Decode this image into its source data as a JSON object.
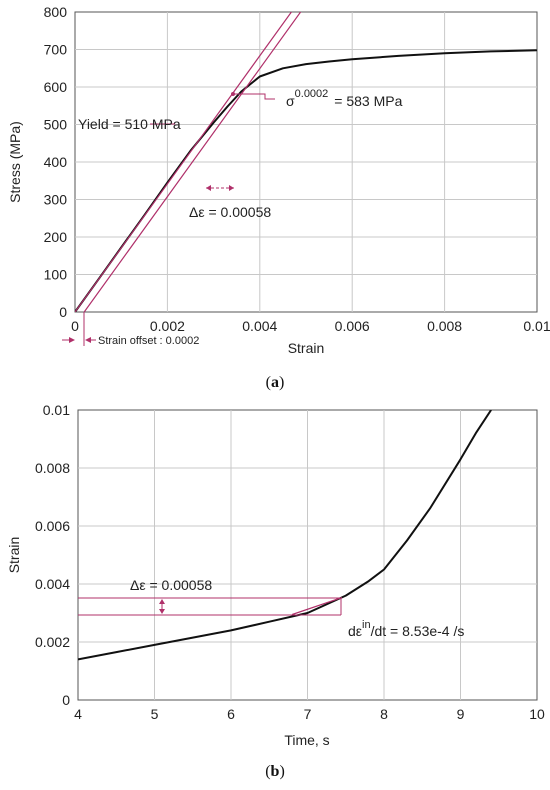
{
  "chart_data": [
    {
      "panel": "(a)",
      "type": "line",
      "xlabel": "Strain",
      "ylabel": "Stress (MPa)",
      "xlim": [
        0,
        0.01
      ],
      "ylim": [
        0,
        800
      ],
      "xticks": [
        0,
        0.002,
        0.004,
        0.006,
        0.008,
        0.01
      ],
      "xtick_labels": [
        "0",
        "0.002",
        "0.004",
        "0.006",
        "0.008",
        "0.01"
      ],
      "yticks": [
        0,
        100,
        200,
        300,
        400,
        500,
        600,
        700,
        800
      ],
      "ytick_labels": [
        "0",
        "100",
        "200",
        "300",
        "400",
        "500",
        "600",
        "700",
        "800"
      ],
      "grid": true,
      "series": [
        {
          "x": [
            0,
            0.0005,
            0.001,
            0.0015,
            0.002,
            0.0025,
            0.003,
            0.0033,
            0.0036,
            0.004,
            0.0045,
            0.005,
            0.0055,
            0.006,
            0.007,
            0.008,
            0.009,
            0.01
          ],
          "y": [
            0,
            86,
            172,
            258,
            345,
            430,
            505,
            548,
            588,
            628,
            650,
            661,
            668,
            674,
            683,
            690,
            695,
            698
          ],
          "color": "#111111"
        },
        {
          "x": [
            0,
            0.0048
          ],
          "y": [
            0,
            820
          ],
          "color": "#b0306a"
        },
        {
          "x": [
            0.0002,
            0.005
          ],
          "y": [
            0,
            820
          ],
          "color": "#b0306a"
        }
      ],
      "annotations": {
        "yield": "Yield = 510 MPa",
        "sigma_symbol": "σ",
        "sigma_sup": "0.0002",
        "sigma_value": "= 583 MPa",
        "delta_eps": "Δε = 0.00058",
        "offset": "Strain offset : 0.0002"
      }
    },
    {
      "panel": "(b)",
      "type": "line",
      "xlabel": "Time, s",
      "ylabel": "Strain",
      "xlim": [
        4,
        10
      ],
      "ylim": [
        0,
        0.01
      ],
      "xticks": [
        4,
        5,
        6,
        7,
        8,
        9,
        10
      ],
      "xtick_labels": [
        "4",
        "5",
        "6",
        "7",
        "8",
        "9",
        "10"
      ],
      "yticks": [
        0,
        0.002,
        0.004,
        0.006,
        0.008,
        0.01
      ],
      "ytick_labels": [
        "0",
        "0.002",
        "0.004",
        "0.006",
        "0.008",
        "0.01"
      ],
      "grid": true,
      "series": [
        {
          "x": [
            4,
            4.5,
            5,
            5.5,
            6,
            6.5,
            7,
            7.5,
            7.8,
            8,
            8.3,
            8.6,
            9,
            9.2,
            9.4
          ],
          "y": [
            0.0014,
            0.00165,
            0.0019,
            0.00215,
            0.0024,
            0.0027,
            0.003,
            0.0036,
            0.0041,
            0.0045,
            0.0055,
            0.0066,
            0.0083,
            0.0092,
            0.01
          ],
          "color": "#111111"
        },
        {
          "x": [
            6.8,
            7.45
          ],
          "y": [
            0.00295,
            0.00353
          ],
          "color": "#b0306a"
        }
      ],
      "annotations": {
        "delta_eps": "Δε = 0.00058",
        "rate_prefix": "dε",
        "rate_sup": "in",
        "rate_suffix": "/dt = 8.53e-4 /s"
      }
    }
  ]
}
